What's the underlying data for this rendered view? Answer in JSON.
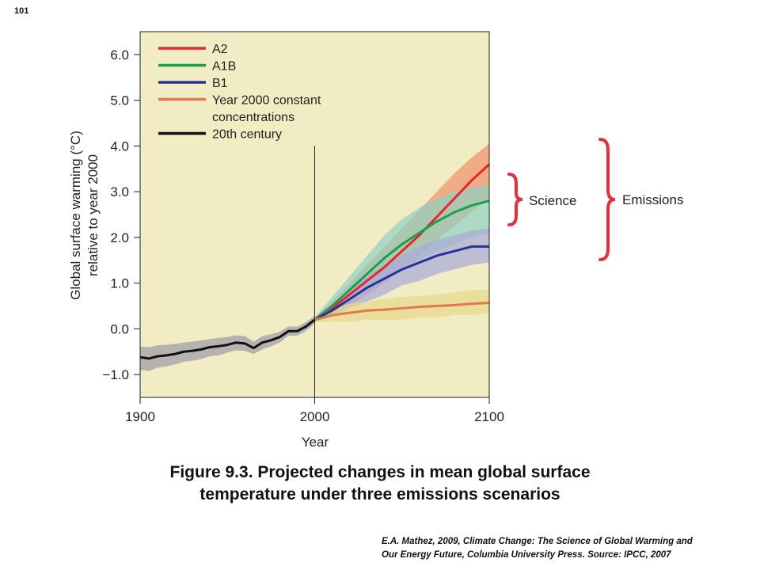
{
  "slide_number": "101",
  "caption": {
    "line1": "Figure 9.3.  Projected changes in mean global surface",
    "line2": "temperature under three emissions scenarios"
  },
  "citation": {
    "line1": "E.A. Mathez, 2009, Climate Change: The Science of Global Warming and",
    "line2": "Our Energy Future, Columbia University Press.  Source: IPCC, 2007"
  },
  "annotations": {
    "science": "Science",
    "emissions": "Emissions",
    "bracket_color": "#e0323a"
  },
  "chart_data": {
    "type": "line",
    "xlabel": "Year",
    "ylabel_line1": "Global surface warming (°C)",
    "ylabel_line2": "relative to year 2000",
    "xlim": [
      1900,
      2100
    ],
    "ylim": [
      -1.5,
      6.5
    ],
    "x_ticks": [
      1900,
      2000,
      2100
    ],
    "x_tick_labels": [
      "1900",
      "2000",
      "2100"
    ],
    "y_ticks": [
      -1,
      0,
      1,
      2,
      3,
      4,
      5,
      6
    ],
    "y_tick_labels": [
      "−1.0",
      "0.0",
      "1.0",
      "2.0",
      "3.0",
      "4.0",
      "5.0",
      "6.0"
    ],
    "vertical_line_x": 2000,
    "background": "#f1ecc4",
    "grid": false,
    "legend_position": "top-left",
    "series": [
      {
        "name": "A2",
        "color": "#e8262d",
        "band_color": "#f0926a",
        "x": [
          2000,
          2010,
          2020,
          2030,
          2040,
          2050,
          2060,
          2070,
          2080,
          2090,
          2100
        ],
        "values": [
          0.2,
          0.45,
          0.75,
          1.05,
          1.35,
          1.7,
          2.05,
          2.45,
          2.85,
          3.25,
          3.6
        ],
        "lower": [
          0.15,
          0.3,
          0.5,
          0.75,
          1.0,
          1.3,
          1.6,
          1.95,
          2.25,
          2.55,
          2.85
        ],
        "upper": [
          0.25,
          0.6,
          1.0,
          1.4,
          1.8,
          2.2,
          2.6,
          3.0,
          3.4,
          3.75,
          4.05
        ]
      },
      {
        "name": "A1B",
        "color": "#1aa04a",
        "band_color": "#8fd3c4",
        "x": [
          2000,
          2010,
          2020,
          2030,
          2040,
          2050,
          2060,
          2070,
          2080,
          2090,
          2100
        ],
        "values": [
          0.2,
          0.5,
          0.85,
          1.2,
          1.55,
          1.85,
          2.1,
          2.35,
          2.55,
          2.7,
          2.8
        ],
        "lower": [
          0.15,
          0.3,
          0.55,
          0.8,
          1.05,
          1.3,
          1.5,
          1.7,
          1.85,
          2.0,
          2.1
        ],
        "upper": [
          0.25,
          0.7,
          1.15,
          1.6,
          2.05,
          2.4,
          2.65,
          2.85,
          3.0,
          3.1,
          3.15
        ]
      },
      {
        "name": "B1",
        "color": "#27319a",
        "band_color": "#a9a9d8",
        "x": [
          2000,
          2010,
          2020,
          2030,
          2040,
          2050,
          2060,
          2070,
          2080,
          2090,
          2100
        ],
        "values": [
          0.2,
          0.4,
          0.65,
          0.9,
          1.1,
          1.3,
          1.45,
          1.6,
          1.7,
          1.8,
          1.8
        ],
        "lower": [
          0.15,
          0.25,
          0.45,
          0.6,
          0.75,
          0.95,
          1.05,
          1.2,
          1.3,
          1.4,
          1.45
        ],
        "upper": [
          0.25,
          0.55,
          0.85,
          1.15,
          1.4,
          1.6,
          1.8,
          1.95,
          2.05,
          2.15,
          2.2
        ]
      },
      {
        "name": "Year 2000 constant",
        "name_line2": "concentrations",
        "color": "#e07a4a",
        "band_color": "#e6d98a",
        "x": [
          2000,
          2010,
          2020,
          2030,
          2040,
          2050,
          2060,
          2070,
          2080,
          2090,
          2100
        ],
        "values": [
          0.2,
          0.3,
          0.35,
          0.4,
          0.42,
          0.45,
          0.48,
          0.5,
          0.52,
          0.55,
          0.57
        ],
        "lower": [
          0.15,
          0.15,
          0.15,
          0.2,
          0.2,
          0.2,
          0.25,
          0.25,
          0.3,
          0.3,
          0.35
        ],
        "upper": [
          0.25,
          0.45,
          0.55,
          0.6,
          0.65,
          0.7,
          0.72,
          0.75,
          0.8,
          0.85,
          0.85
        ]
      },
      {
        "name": "20th century",
        "color": "#111111",
        "band_color": "#9d9aa6",
        "x": [
          1900,
          1905,
          1910,
          1915,
          1920,
          1925,
          1930,
          1935,
          1940,
          1945,
          1950,
          1955,
          1960,
          1965,
          1970,
          1975,
          1980,
          1985,
          1990,
          1995,
          2000
        ],
        "values": [
          -0.62,
          -0.65,
          -0.6,
          -0.58,
          -0.55,
          -0.5,
          -0.48,
          -0.45,
          -0.4,
          -0.38,
          -0.35,
          -0.3,
          -0.32,
          -0.42,
          -0.3,
          -0.25,
          -0.18,
          -0.05,
          -0.05,
          0.05,
          0.2
        ],
        "lower": [
          -0.9,
          -0.92,
          -0.85,
          -0.82,
          -0.78,
          -0.72,
          -0.7,
          -0.66,
          -0.6,
          -0.58,
          -0.52,
          -0.47,
          -0.48,
          -0.55,
          -0.45,
          -0.38,
          -0.3,
          -0.15,
          -0.15,
          -0.05,
          0.12
        ],
        "upper": [
          -0.38,
          -0.4,
          -0.36,
          -0.35,
          -0.33,
          -0.3,
          -0.28,
          -0.25,
          -0.22,
          -0.2,
          -0.18,
          -0.14,
          -0.16,
          -0.28,
          -0.16,
          -0.12,
          -0.06,
          0.05,
          0.05,
          0.15,
          0.28
        ]
      }
    ]
  }
}
